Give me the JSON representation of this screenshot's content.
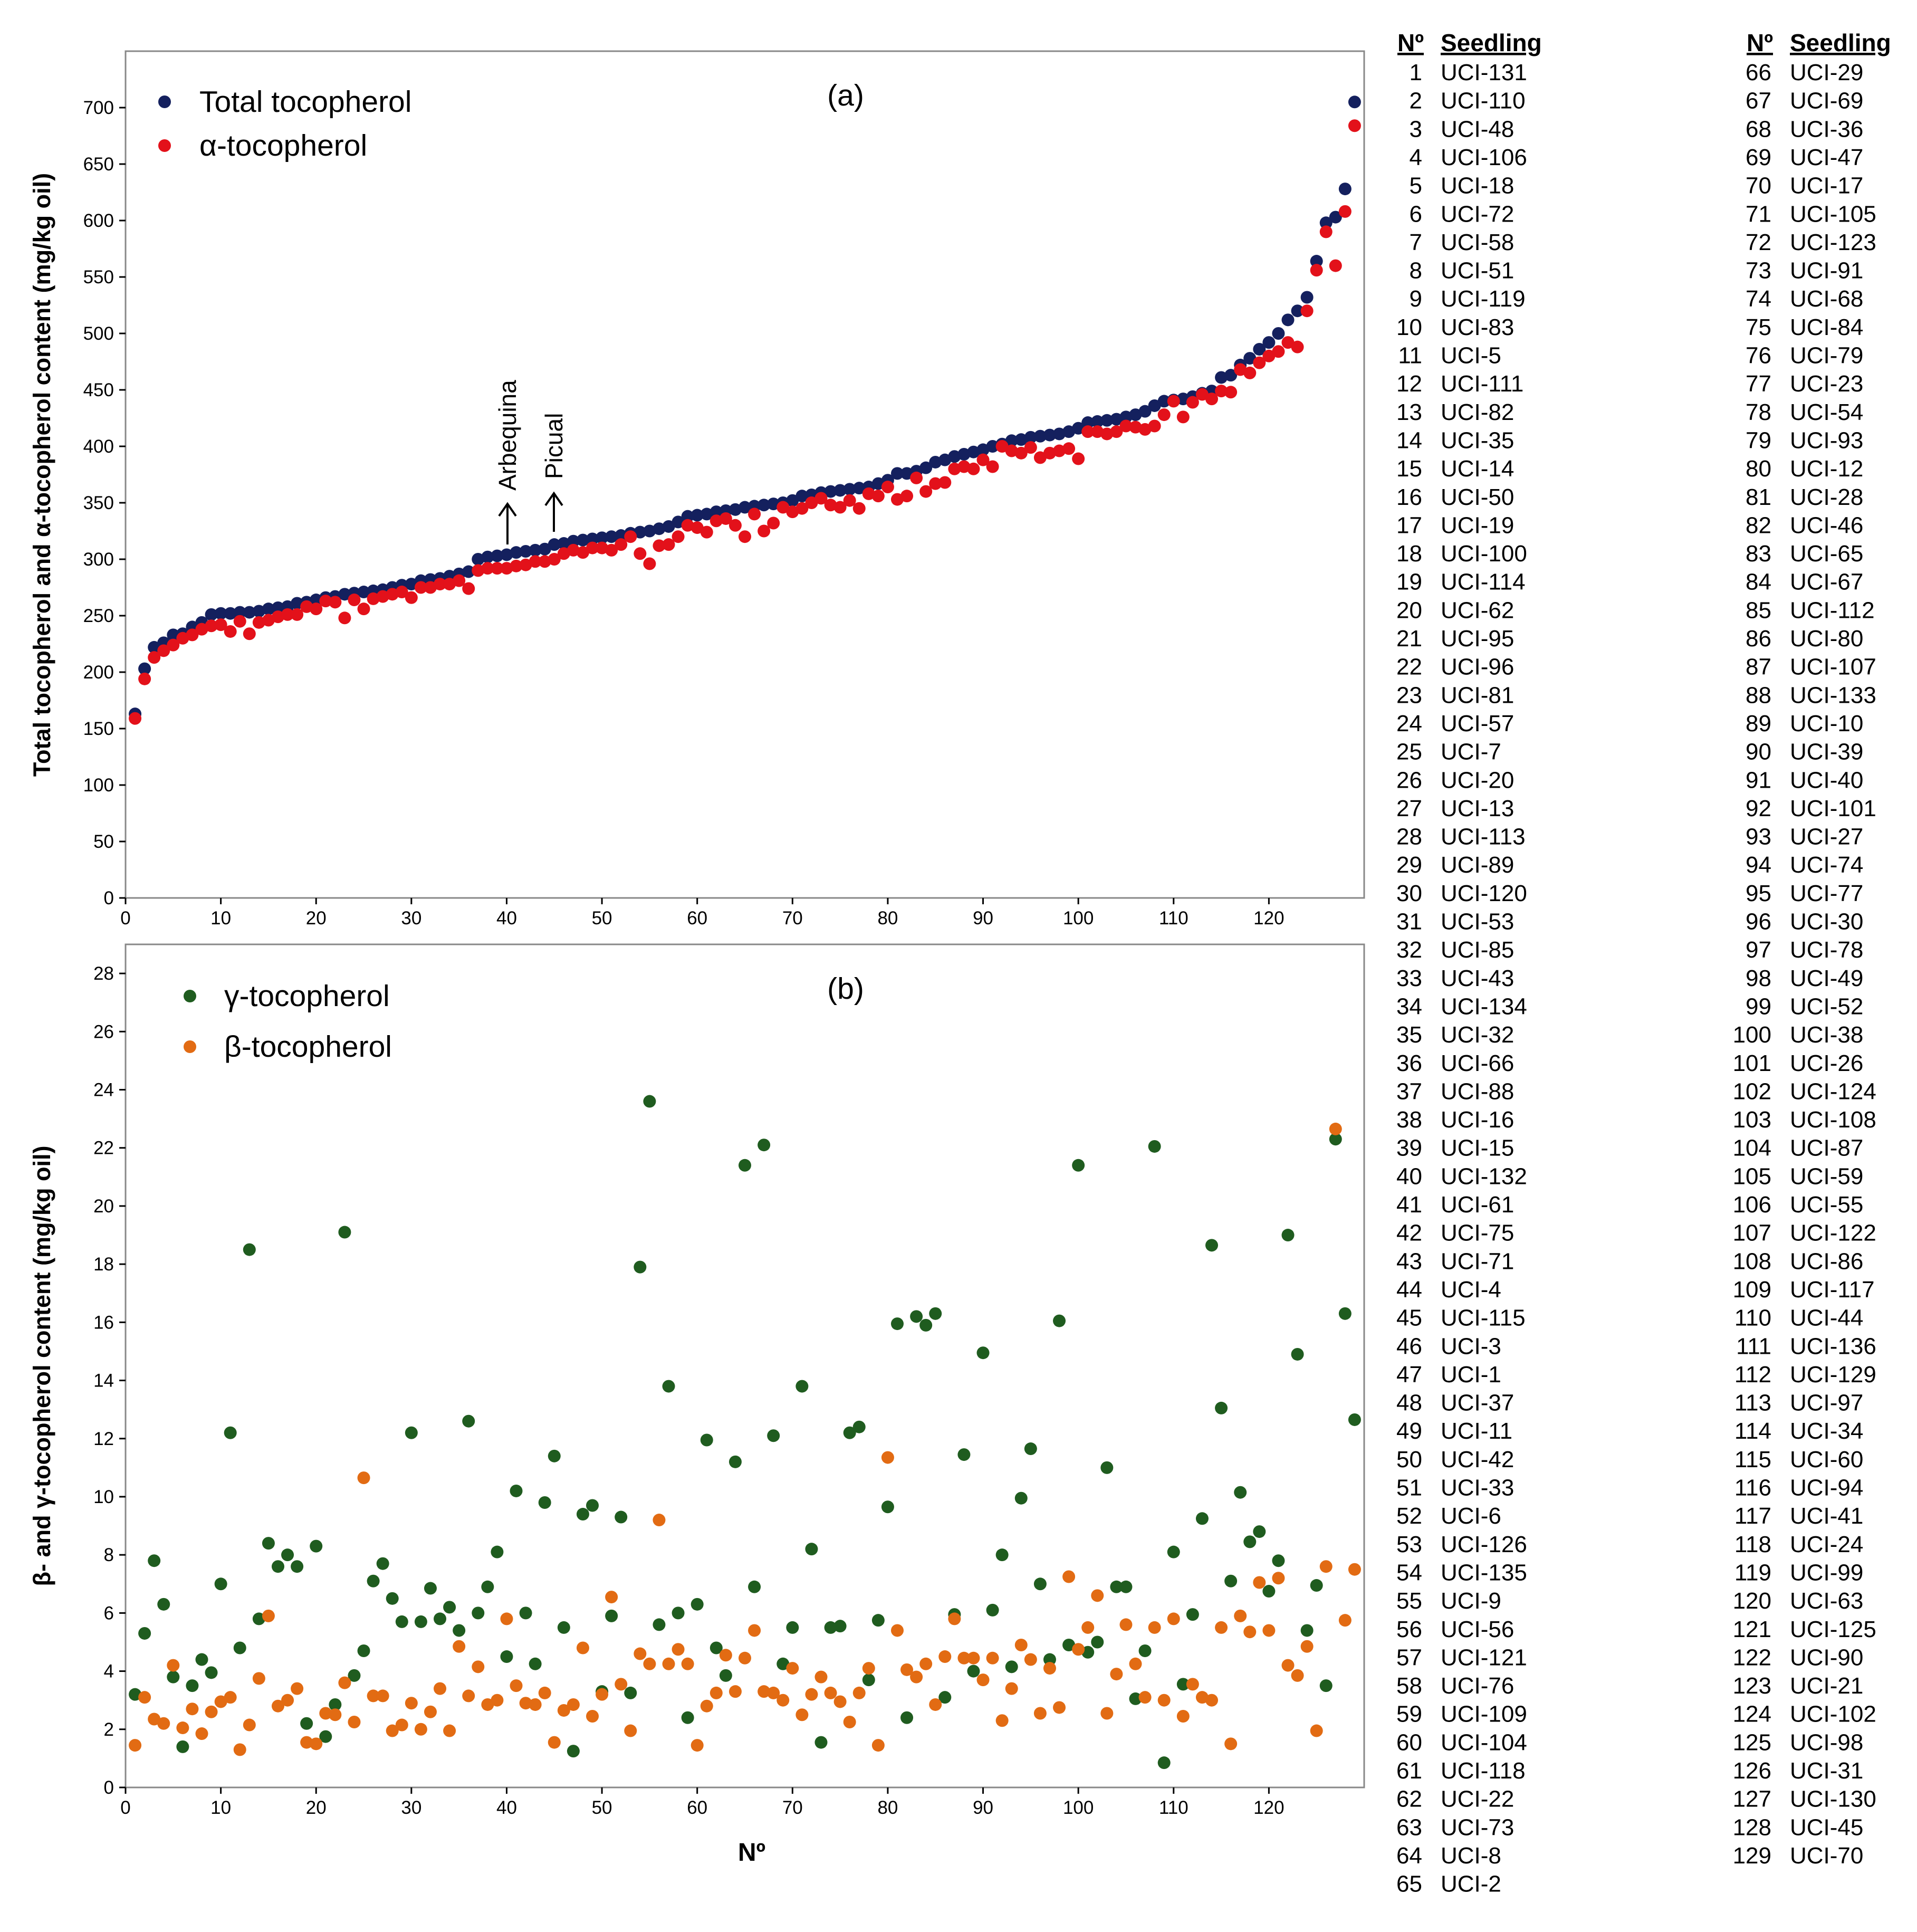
{
  "chart_data": [
    {
      "panel": "(a)",
      "type": "scatter",
      "xlabel": "",
      "ylabel": "Total tocopherol and α-tocopherol content (mg/kg oil)",
      "xlim": [
        0,
        130
      ],
      "ylim": [
        0,
        750
      ],
      "xticks": [
        0,
        10,
        20,
        30,
        40,
        50,
        60,
        70,
        80,
        90,
        100,
        110,
        120
      ],
      "yticks": [
        0,
        50,
        100,
        150,
        200,
        250,
        300,
        350,
        400,
        450,
        500,
        550,
        600,
        650,
        700
      ],
      "legend_position": "top-left",
      "annotations": [
        "Arbequina",
        "Picual"
      ],
      "series": [
        {
          "name": "Total tocopherol",
          "color": "#14205e",
          "values": [
            163,
            203,
            222,
            226,
            233,
            234,
            240,
            244,
            251,
            252,
            252,
            253,
            253,
            254,
            256,
            257,
            258,
            261,
            262,
            264,
            266,
            267,
            269,
            270,
            271,
            272,
            273,
            275,
            277,
            278,
            281,
            282,
            283,
            285,
            287,
            289,
            300,
            302,
            303,
            304,
            306,
            307,
            308,
            309,
            313,
            314,
            316,
            317,
            318,
            319,
            320,
            321,
            323,
            324,
            325,
            327,
            329,
            333,
            338,
            339,
            340,
            342,
            343,
            344,
            346,
            347,
            348,
            349,
            350,
            352,
            356,
            357,
            359,
            360,
            361,
            362,
            363,
            364,
            367,
            370,
            376,
            376,
            378,
            381,
            386,
            388,
            391,
            393,
            395,
            397,
            400,
            402,
            405,
            406,
            408,
            409,
            410,
            411,
            413,
            416,
            421,
            422,
            423,
            424,
            426,
            428,
            431,
            436,
            440,
            441,
            442,
            444,
            447,
            449,
            461,
            463,
            472,
            478,
            486,
            492,
            500,
            512,
            520,
            532,
            564,
            598,
            603,
            628,
            705
          ]
        },
        {
          "name": "α-tocopherol",
          "color": "#e3111a",
          "values": [
            159,
            194,
            213,
            219,
            224,
            230,
            233,
            238,
            241,
            242,
            236,
            245,
            234,
            244,
            246,
            249,
            251,
            251,
            258,
            256,
            263,
            262,
            248,
            264,
            256,
            265,
            267,
            269,
            271,
            266,
            275,
            275,
            278,
            278,
            281,
            274,
            290,
            292,
            292,
            292,
            294,
            295,
            298,
            298,
            300,
            305,
            308,
            306,
            310,
            310,
            308,
            313,
            320,
            305,
            296,
            312,
            313,
            320,
            330,
            328,
            324,
            334,
            336,
            330,
            320,
            340,
            325,
            332,
            346,
            342,
            345,
            350,
            354,
            348,
            346,
            352,
            345,
            358,
            356,
            364,
            353,
            356,
            372,
            360,
            367,
            368,
            380,
            382,
            380,
            388,
            382,
            400,
            396,
            394,
            399,
            390,
            394,
            396,
            398,
            389,
            413,
            413,
            411,
            413,
            418,
            417,
            415,
            418,
            428,
            440,
            426,
            439,
            446,
            442,
            449,
            448,
            468,
            465,
            474,
            480,
            484,
            492,
            488,
            520,
            556,
            590,
            560,
            608,
            684
          ]
        }
      ]
    },
    {
      "panel": "(b)",
      "type": "scatter",
      "xlabel": "Nº",
      "ylabel": "β- and γ-tocopherol content (mg/kg oil)",
      "xlim": [
        0,
        130
      ],
      "ylim": [
        0,
        29
      ],
      "xticks": [
        0,
        10,
        20,
        30,
        40,
        50,
        60,
        70,
        80,
        90,
        100,
        110,
        120
      ],
      "yticks": [
        0,
        2,
        4,
        6,
        8,
        10,
        12,
        14,
        16,
        18,
        20,
        22,
        24,
        26,
        28
      ],
      "legend_position": "top-left",
      "series": [
        {
          "name": "γ-tocopherol",
          "color": "#1f5c1f",
          "values": [
            3.2,
            5.3,
            7.8,
            6.3,
            3.8,
            1.4,
            3.5,
            4.4,
            3.95,
            7.0,
            12.2,
            4.8,
            18.5,
            5.8,
            8.4,
            7.6,
            8.0,
            7.6,
            2.2,
            8.3,
            1.75,
            2.85,
            19.1,
            3.85,
            4.7,
            7.1,
            7.7,
            6.5,
            5.7,
            12.2,
            5.7,
            6.85,
            5.8,
            6.2,
            5.4,
            12.6,
            6.0,
            6.9,
            8.1,
            4.5,
            10.2,
            6.0,
            4.25,
            9.8,
            11.4,
            5.5,
            1.25,
            9.4,
            9.7,
            3.3,
            5.9,
            9.3,
            3.25,
            17.9,
            23.6,
            5.6,
            13.8,
            6.0,
            2.4,
            6.3,
            11.95,
            4.8,
            3.85,
            11.2,
            21.4,
            6.9,
            22.1,
            12.1,
            4.25,
            5.5,
            13.8,
            8.2,
            1.55,
            5.5,
            5.55,
            12.2,
            12.4,
            3.7,
            5.75,
            9.65,
            15.95,
            2.4,
            16.2,
            15.9,
            16.3,
            3.1,
            5.95,
            11.45,
            4.0,
            14.95,
            6.1,
            8.0,
            4.15,
            9.95,
            11.65,
            7.0,
            4.4,
            16.05,
            4.9,
            21.4,
            4.65,
            5.0,
            11.0,
            6.9,
            6.9,
            3.05,
            4.7,
            22.05,
            0.85,
            8.1,
            3.55,
            5.95,
            9.25,
            18.65,
            13.05,
            7.1,
            10.15,
            8.45,
            8.8,
            6.75,
            7.8,
            19.0,
            14.9,
            5.4,
            6.95,
            3.5,
            22.3,
            16.3,
            12.65
          ]
        },
        {
          "name": "β-tocopherol",
          "color": "#e26b13",
          "values": [
            1.45,
            3.1,
            2.35,
            2.2,
            4.2,
            2.05,
            2.7,
            1.85,
            2.6,
            2.95,
            3.1,
            1.3,
            2.15,
            3.75,
            5.9,
            2.8,
            3.0,
            3.4,
            1.55,
            1.5,
            2.55,
            2.5,
            3.6,
            2.25,
            10.65,
            3.15,
            3.15,
            1.95,
            2.15,
            2.9,
            2.0,
            2.6,
            3.4,
            1.95,
            4.85,
            3.15,
            4.15,
            2.85,
            3.0,
            5.8,
            3.5,
            2.9,
            2.85,
            3.25,
            1.55,
            2.65,
            2.85,
            4.8,
            2.45,
            3.2,
            6.55,
            3.55,
            1.95,
            4.6,
            4.25,
            9.2,
            4.25,
            4.75,
            4.25,
            1.45,
            2.8,
            3.25,
            4.55,
            3.3,
            4.45,
            5.4,
            3.3,
            3.25,
            3.0,
            4.1,
            2.5,
            3.2,
            3.8,
            3.25,
            2.95,
            2.25,
            3.25,
            4.1,
            1.45,
            11.35,
            5.4,
            4.05,
            3.8,
            4.25,
            2.85,
            4.5,
            5.8,
            4.45,
            4.45,
            3.7,
            4.45,
            2.3,
            3.4,
            4.9,
            4.4,
            2.55,
            4.1,
            2.75,
            7.25,
            4.75,
            5.5,
            6.6,
            2.55,
            3.9,
            5.6,
            4.25,
            3.1,
            5.5,
            3.0,
            5.8,
            2.45,
            3.55,
            3.1,
            3.0,
            5.5,
            1.5,
            5.9,
            5.35,
            7.05,
            5.4,
            7.2,
            4.2,
            3.85,
            4.85,
            1.95,
            7.6,
            22.65,
            5.75,
            7.5
          ]
        }
      ]
    }
  ],
  "figure": {
    "panel_a_label": "(a)",
    "panel_b_label": "(b)",
    "annotation_arbequina": "Arbequina",
    "annotation_picual": "Picual",
    "legend_a1": "Total tocopherol",
    "legend_a2": "α-tocopherol",
    "legend_b1": "γ-tocopherol",
    "legend_b2": "β-tocopherol",
    "ylabel_a": "Total tocopherol and α-tocopherol content (mg/kg oil)",
    "ylabel_b": "β- and γ-tocopherol content (mg/kg oil)",
    "xlabel_b": "Nº"
  },
  "seedling_table": {
    "header_no": "Nº",
    "header_seedling": "Seedling",
    "rows": [
      [
        "1",
        "UCI-131"
      ],
      [
        "2",
        "UCI-110"
      ],
      [
        "3",
        "UCI-48"
      ],
      [
        "4",
        "UCI-106"
      ],
      [
        "5",
        "UCI-18"
      ],
      [
        "6",
        "UCI-72"
      ],
      [
        "7",
        "UCI-58"
      ],
      [
        "8",
        "UCI-51"
      ],
      [
        "9",
        "UCI-119"
      ],
      [
        "10",
        "UCI-83"
      ],
      [
        "11",
        "UCI-5"
      ],
      [
        "12",
        "UCI-111"
      ],
      [
        "13",
        "UCI-82"
      ],
      [
        "14",
        "UCI-35"
      ],
      [
        "15",
        "UCI-14"
      ],
      [
        "16",
        "UCI-50"
      ],
      [
        "17",
        "UCI-19"
      ],
      [
        "18",
        "UCI-100"
      ],
      [
        "19",
        "UCI-114"
      ],
      [
        "20",
        "UCI-62"
      ],
      [
        "21",
        "UCI-95"
      ],
      [
        "22",
        "UCI-96"
      ],
      [
        "23",
        "UCI-81"
      ],
      [
        "24",
        "UCI-57"
      ],
      [
        "25",
        "UCI-7"
      ],
      [
        "26",
        "UCI-20"
      ],
      [
        "27",
        "UCI-13"
      ],
      [
        "28",
        "UCI-113"
      ],
      [
        "29",
        "UCI-89"
      ],
      [
        "30",
        "UCI-120"
      ],
      [
        "31",
        "UCI-53"
      ],
      [
        "32",
        "UCI-85"
      ],
      [
        "33",
        "UCI-43"
      ],
      [
        "34",
        "UCI-134"
      ],
      [
        "35",
        "UCI-32"
      ],
      [
        "36",
        "UCI-66"
      ],
      [
        "37",
        "UCI-88"
      ],
      [
        "38",
        "UCI-16"
      ],
      [
        "39",
        "UCI-15"
      ],
      [
        "40",
        "UCI-132"
      ],
      [
        "41",
        "UCI-61"
      ],
      [
        "42",
        "UCI-75"
      ],
      [
        "43",
        "UCI-71"
      ],
      [
        "44",
        "UCI-4"
      ],
      [
        "45",
        "UCI-115"
      ],
      [
        "46",
        "UCI-3"
      ],
      [
        "47",
        "UCI-1"
      ],
      [
        "48",
        "UCI-37"
      ],
      [
        "49",
        "UCI-11"
      ],
      [
        "50",
        "UCI-42"
      ],
      [
        "51",
        "UCI-33"
      ],
      [
        "52",
        "UCI-6"
      ],
      [
        "53",
        "UCI-126"
      ],
      [
        "54",
        "UCI-135"
      ],
      [
        "55",
        "UCI-9"
      ],
      [
        "56",
        "UCI-56"
      ],
      [
        "57",
        "UCI-121"
      ],
      [
        "58",
        "UCI-76"
      ],
      [
        "59",
        "UCI-109"
      ],
      [
        "60",
        "UCI-104"
      ],
      [
        "61",
        "UCI-118"
      ],
      [
        "62",
        "UCI-22"
      ],
      [
        "63",
        "UCI-73"
      ],
      [
        "64",
        "UCI-8"
      ],
      [
        "65",
        "UCI-2"
      ],
      [
        "66",
        "UCI-29"
      ],
      [
        "67",
        "UCI-69"
      ],
      [
        "68",
        "UCI-36"
      ],
      [
        "69",
        "UCI-47"
      ],
      [
        "70",
        "UCI-17"
      ],
      [
        "71",
        "UCI-105"
      ],
      [
        "72",
        "UCI-123"
      ],
      [
        "73",
        "UCI-91"
      ],
      [
        "74",
        "UCI-68"
      ],
      [
        "75",
        "UCI-84"
      ],
      [
        "76",
        "UCI-79"
      ],
      [
        "77",
        "UCI-23"
      ],
      [
        "78",
        "UCI-54"
      ],
      [
        "79",
        "UCI-93"
      ],
      [
        "80",
        "UCI-12"
      ],
      [
        "81",
        "UCI-28"
      ],
      [
        "82",
        "UCI-46"
      ],
      [
        "83",
        "UCI-65"
      ],
      [
        "84",
        "UCI-67"
      ],
      [
        "85",
        "UCI-112"
      ],
      [
        "86",
        "UCI-80"
      ],
      [
        "87",
        "UCI-107"
      ],
      [
        "88",
        "UCI-133"
      ],
      [
        "89",
        "UCI-10"
      ],
      [
        "90",
        "UCI-39"
      ],
      [
        "91",
        "UCI-40"
      ],
      [
        "92",
        "UCI-101"
      ],
      [
        "93",
        "UCI-27"
      ],
      [
        "94",
        "UCI-74"
      ],
      [
        "95",
        "UCI-77"
      ],
      [
        "96",
        "UCI-30"
      ],
      [
        "97",
        "UCI-78"
      ],
      [
        "98",
        "UCI-49"
      ],
      [
        "99",
        "UCI-52"
      ],
      [
        "100",
        "UCI-38"
      ],
      [
        "101",
        "UCI-26"
      ],
      [
        "102",
        "UCI-124"
      ],
      [
        "103",
        "UCI-108"
      ],
      [
        "104",
        "UCI-87"
      ],
      [
        "105",
        "UCI-59"
      ],
      [
        "106",
        "UCI-55"
      ],
      [
        "107",
        "UCI-122"
      ],
      [
        "108",
        "UCI-86"
      ],
      [
        "109",
        "UCI-117"
      ],
      [
        "110",
        "UCI-44"
      ],
      [
        "111",
        "UCI-136"
      ],
      [
        "112",
        "UCI-129"
      ],
      [
        "113",
        "UCI-97"
      ],
      [
        "114",
        "UCI-34"
      ],
      [
        "115",
        "UCI-60"
      ],
      [
        "116",
        "UCI-94"
      ],
      [
        "117",
        "UCI-41"
      ],
      [
        "118",
        "UCI-24"
      ],
      [
        "119",
        "UCI-99"
      ],
      [
        "120",
        "UCI-63"
      ],
      [
        "121",
        "UCI-125"
      ],
      [
        "122",
        "UCI-90"
      ],
      [
        "123",
        "UCI-21"
      ],
      [
        "124",
        "UCI-102"
      ],
      [
        "125",
        "UCI-98"
      ],
      [
        "126",
        "UCI-31"
      ],
      [
        "127",
        "UCI-130"
      ],
      [
        "128",
        "UCI-45"
      ],
      [
        "129",
        "UCI-70"
      ]
    ]
  }
}
